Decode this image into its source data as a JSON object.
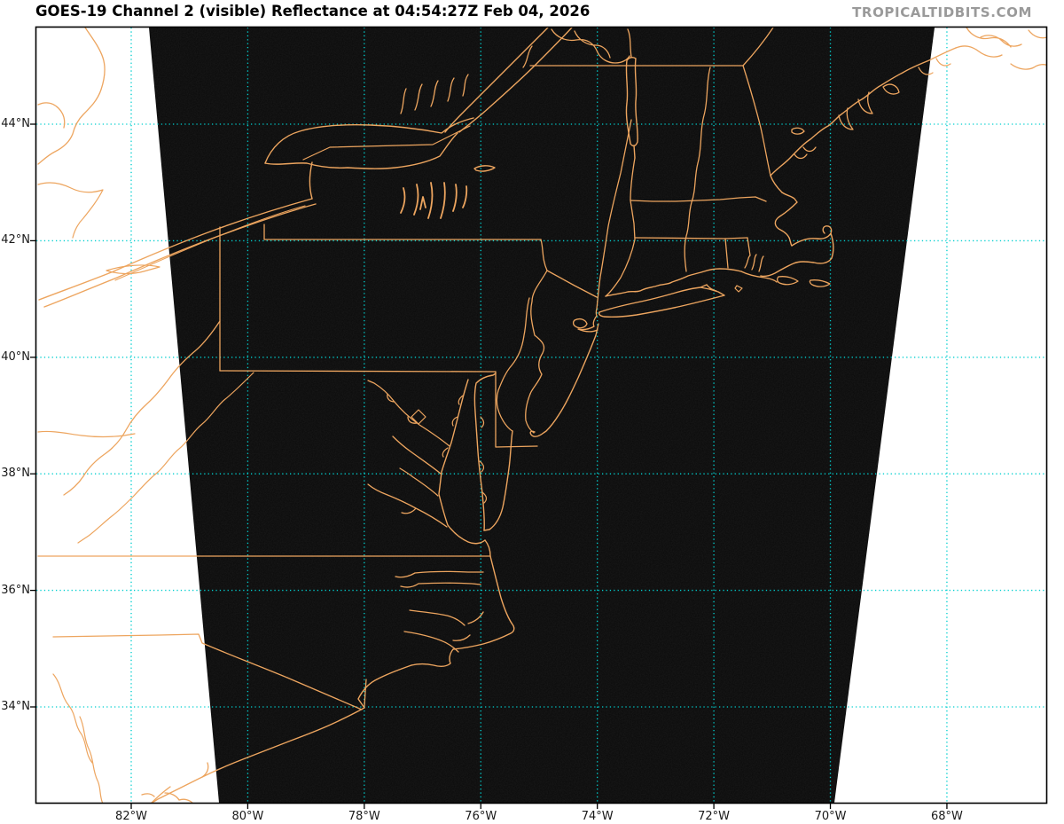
{
  "header": {
    "title": "GOES-19 Channel 2 (visible) Reflectance at 04:54:27Z Feb 04, 2026",
    "watermark": "TROPICALTIDBITS.COM"
  },
  "image_meta": {
    "satellite": "GOES-19",
    "channel": "Channel 2 (visible)",
    "product": "Reflectance",
    "valid_time": "04:54:27Z Feb 04, 2026"
  },
  "axes": {
    "latitude_ticks": [
      "44°N",
      "42°N",
      "40°N",
      "38°N",
      "36°N",
      "34°N"
    ],
    "longitude_ticks": [
      "82°W",
      "80°W",
      "78°W",
      "76°W",
      "74°W",
      "72°W",
      "70°W",
      "68°W"
    ]
  },
  "colors": {
    "background": "#ffffff",
    "scan_region_fill": "#090909",
    "map_outline": "#eda55f",
    "gridline": "#00cfcf",
    "frame": "#000000",
    "title_text": "#000000",
    "watermark_text": "#9a9a9a",
    "tick_text": "#1a1a1a"
  }
}
